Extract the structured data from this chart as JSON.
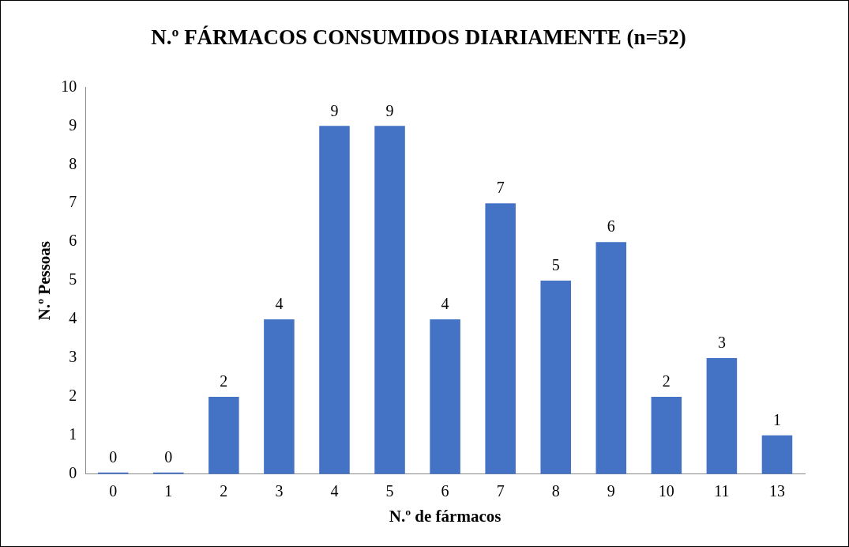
{
  "chart_data": {
    "type": "bar",
    "title": "N.º FÁRMACOS CONSUMIDOS DIARIAMENTE (n=52)",
    "xlabel": "N.º de fármacos",
    "ylabel": "N.º Pessoas",
    "categories": [
      "0",
      "1",
      "2",
      "3",
      "4",
      "5",
      "6",
      "7",
      "8",
      "9",
      "10",
      "11",
      "13"
    ],
    "values": [
      0,
      0,
      2,
      4,
      9,
      9,
      4,
      7,
      5,
      6,
      2,
      3,
      1
    ],
    "color": "#4472c4",
    "ylim": [
      0,
      10
    ],
    "yticks": [
      0,
      1,
      2,
      3,
      4,
      5,
      6,
      7,
      8,
      9,
      10
    ],
    "grid": false,
    "legend": false,
    "data_labels": true
  }
}
